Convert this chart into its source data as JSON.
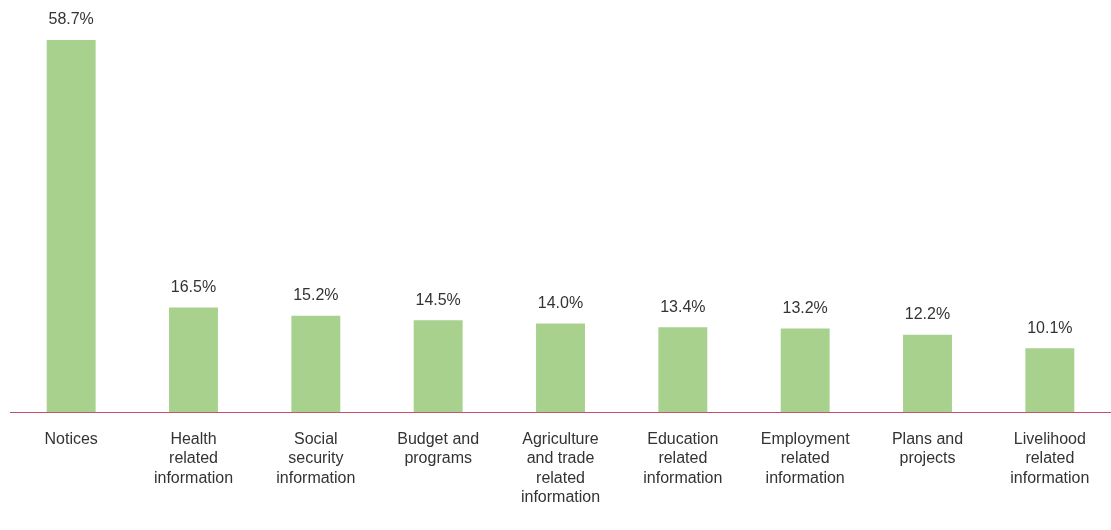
{
  "chart_data": {
    "type": "bar",
    "categories": [
      "Notices",
      "Health related information",
      "Social security information",
      "Budget and programs",
      "Agriculture and trade related information",
      "Education related information",
      "Employment related information",
      "Plans and projects",
      "Livelihood related information"
    ],
    "values": [
      58.7,
      16.5,
      15.2,
      14.5,
      14.0,
      13.4,
      13.2,
      12.2,
      10.1
    ],
    "value_labels": [
      "58.7%",
      "16.5%",
      "15.2%",
      "14.5%",
      "14.0%",
      "13.4%",
      "13.2%",
      "12.2%",
      "10.1%"
    ],
    "color": "#a9d18e",
    "grid": false,
    "legend": false
  }
}
